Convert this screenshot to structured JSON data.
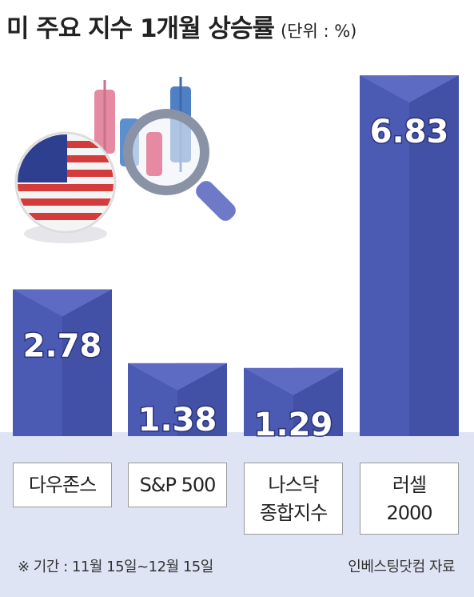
{
  "chart_data": {
    "type": "bar",
    "title": "미 주요 지수 1개월 상승률",
    "unit": "(단위 : %)",
    "categories": [
      "다우존스",
      "S&P 500",
      "나스닥\n종합지수",
      "러셀\n2000"
    ],
    "values": [
      2.78,
      1.38,
      1.29,
      6.83
    ],
    "color": "#4b5ab3",
    "note": "※ 기간 : 11월 15일~12월 15일",
    "source": "인베스팅닷컴 자료"
  }
}
